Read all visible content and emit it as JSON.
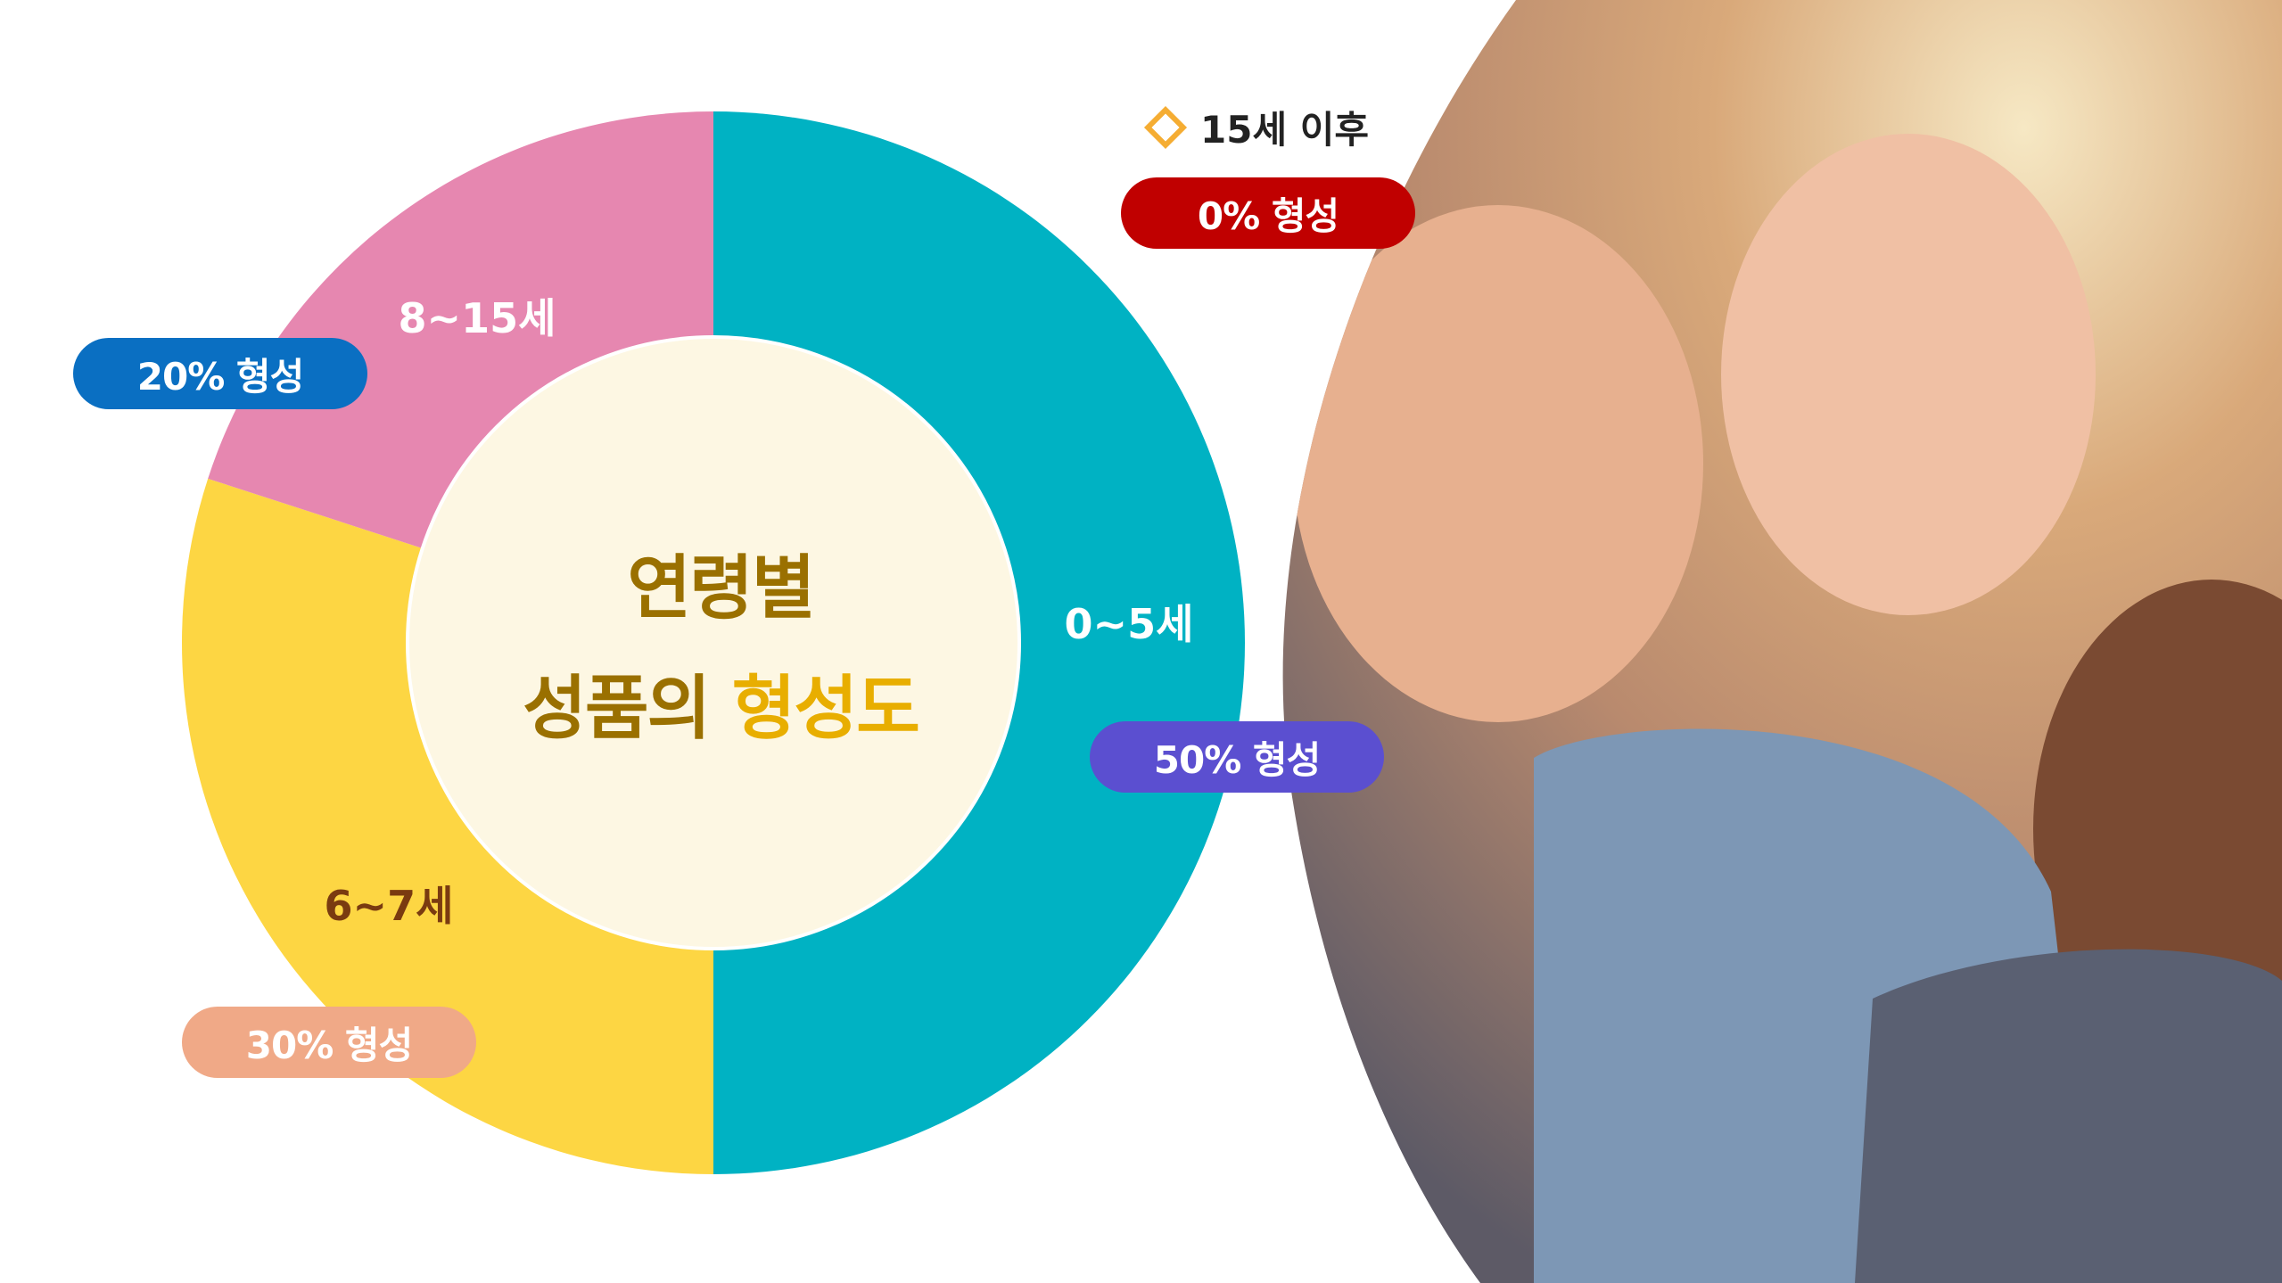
{
  "chart_data": {
    "type": "pie",
    "style": "donut",
    "title_line1": "연령별",
    "title_line2_a": "성품의",
    "title_line2_b": "형성도",
    "categories": [
      "0~5세",
      "6~7세",
      "8~15세"
    ],
    "values": [
      50,
      30,
      20
    ],
    "colors": [
      "#00b2c3",
      "#fdd643",
      "#e687b0"
    ],
    "center_color": "#fdf7e3",
    "callouts": [
      {
        "label": "50% 형성",
        "color": "#5b4fd0"
      },
      {
        "label": "30% 형성",
        "color": "#f0a987"
      },
      {
        "label": "20% 형성",
        "color": "#0a6fc2"
      }
    ],
    "extra": {
      "legend_label": "15세 이후",
      "callout": "0% 형성",
      "color": "#c00000"
    }
  },
  "photo": {
    "description_icon": "children-photo"
  }
}
